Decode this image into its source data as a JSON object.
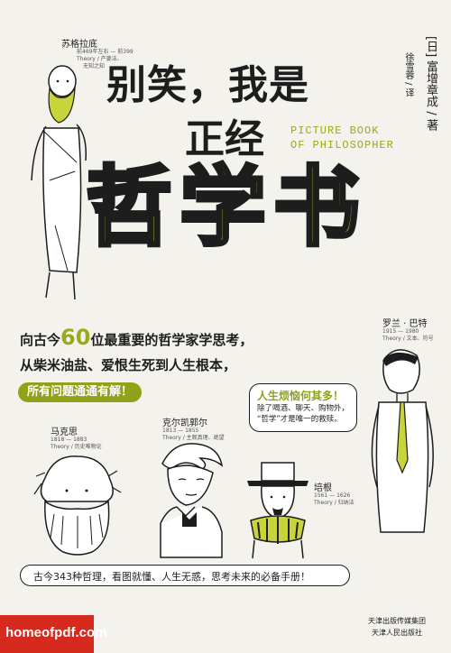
{
  "cover": {
    "title_line1": "别笑，我是",
    "title_line2": "正经",
    "title_line3": "哲学书",
    "subtitle_en_1": "PICTURE BOOK",
    "subtitle_en_2": "OF PHILOSOPHER",
    "author": "[日] 富增章成 / 著",
    "translator": "徐雪蓉 / 译",
    "tagline_line1_pre": "向古今",
    "tagline_line1_num": "60",
    "tagline_line1_post": "位最重要的哲学家学思考，",
    "tagline_line2": "从柴米油盐、爱恨生死到人生根本，",
    "tagline_pill": "所有问题通通有解！",
    "bubble_title": "人生烦恼何其多！",
    "bubble_body_1": "除了喝酒、聊天、购物外，",
    "bubble_body_2": "“哲学”才是唯一的救赎。",
    "bottom_bar": "古今343种哲理，看图就懂、人生无惑，思考未来的必备手册！",
    "publisher_1": "天津出版传媒集团",
    "publisher_2": "天津人民出版社",
    "watermark": "homeofpdf.com"
  },
  "philosophers": {
    "socrates": {
      "name": "苏格拉底",
      "meta_1": "前469年左右 — 前399",
      "meta_2": "Theory / 产婆法、",
      "meta_3": "无知之知"
    },
    "barthes": {
      "name": "罗兰 · 巴特",
      "meta_1": "1915 — 1980",
      "meta_2": "Theory / 文本、符号"
    },
    "marx": {
      "name": "马克思",
      "meta_1": "1818 — 1883",
      "meta_2": "Theory / 历史唯物论"
    },
    "kierkegaard": {
      "name": "克尔凯郭尔",
      "meta_1": "1813 — 1855",
      "meta_2": "Theory / 主观真理、绝望"
    },
    "bacon": {
      "name": "培根",
      "meta_1": "1561 — 1626",
      "meta_2": "Theory / 归纳法"
    }
  },
  "colors": {
    "accent": "#c8d43a",
    "accent_dark": "#8fa21a",
    "background": "#f4f2ec",
    "ink": "#1d1d1d",
    "watermark_red": "#d62a1e"
  }
}
